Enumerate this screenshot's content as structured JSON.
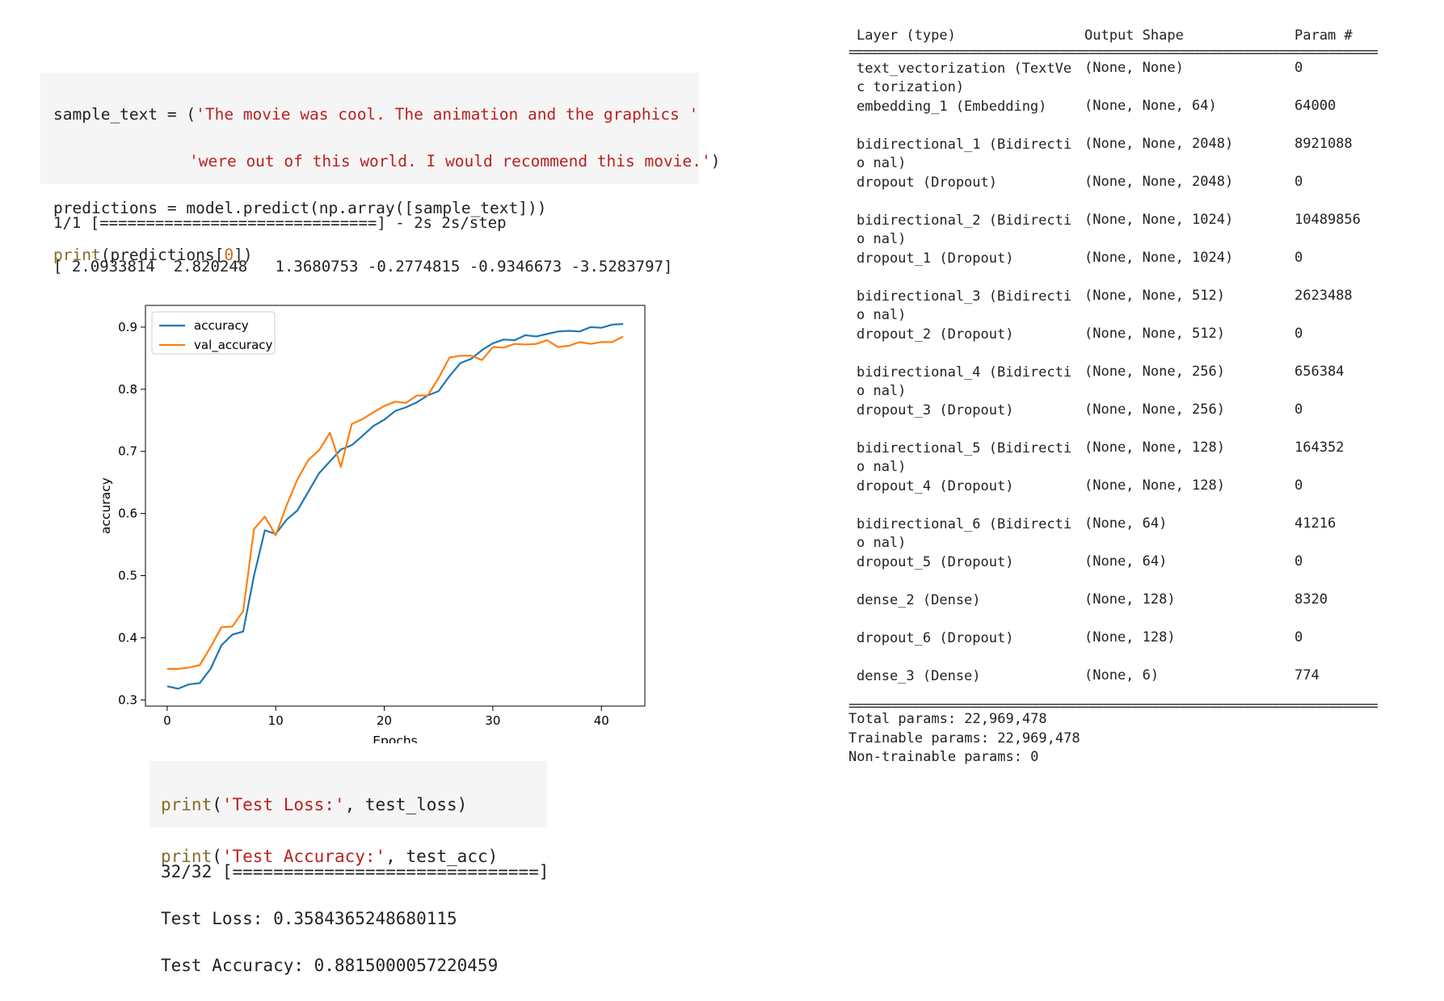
{
  "cell1": {
    "line1_a": "sample_text = (",
    "line1_str": "'The movie was cool. The animation and the graphics '",
    "line2_str": "'were out of this world. I would recommend this movie.'",
    "line2_end": ")",
    "line3": "predictions = model.predict(np.array([sample_text]))",
    "line4_kw": "print",
    "line4_a": "(predictions[",
    "line4_num": "0",
    "line4_b": "])"
  },
  "output1": {
    "progress": "1/1 [==============================] - 2s 2s/step",
    "values": "[ 2.0933814  2.820248   1.3680753 -0.2774815 -0.9346673 -3.5283797]"
  },
  "chart_data": {
    "type": "line",
    "xlabel": "Epochs",
    "ylabel": "accuracy",
    "xlim": [
      -2,
      44
    ],
    "ylim": [
      0.29,
      0.935
    ],
    "xticks": [
      0,
      10,
      20,
      30,
      40
    ],
    "yticks": [
      0.3,
      0.4,
      0.5,
      0.6,
      0.7,
      0.8,
      0.9
    ],
    "legend": "upper-left",
    "grid": false,
    "x": [
      0,
      1,
      2,
      3,
      4,
      5,
      6,
      7,
      8,
      9,
      10,
      11,
      12,
      13,
      14,
      15,
      16,
      17,
      18,
      19,
      20,
      21,
      22,
      23,
      24,
      25,
      26,
      27,
      28,
      29,
      30,
      31,
      32,
      33,
      34,
      35,
      36,
      37,
      38,
      39,
      40,
      41,
      42
    ],
    "series": [
      {
        "name": "accuracy",
        "color": "#1f77b4",
        "values": [
          0.322,
          0.318,
          0.325,
          0.327,
          0.35,
          0.388,
          0.405,
          0.41,
          0.5,
          0.573,
          0.567,
          0.59,
          0.605,
          0.635,
          0.665,
          0.684,
          0.703,
          0.71,
          0.725,
          0.741,
          0.751,
          0.765,
          0.771,
          0.779,
          0.79,
          0.797,
          0.821,
          0.842,
          0.849,
          0.863,
          0.874,
          0.88,
          0.879,
          0.887,
          0.885,
          0.889,
          0.893,
          0.894,
          0.893,
          0.9,
          0.899,
          0.904,
          0.905
        ]
      },
      {
        "name": "val_accuracy",
        "color": "#ff7f0e",
        "values": [
          0.35,
          0.35,
          0.352,
          0.356,
          0.385,
          0.417,
          0.418,
          0.443,
          0.575,
          0.595,
          0.565,
          0.613,
          0.655,
          0.686,
          0.702,
          0.73,
          0.675,
          0.744,
          0.752,
          0.763,
          0.773,
          0.78,
          0.778,
          0.79,
          0.79,
          0.818,
          0.851,
          0.854,
          0.854,
          0.847,
          0.868,
          0.867,
          0.873,
          0.872,
          0.873,
          0.879,
          0.868,
          0.87,
          0.876,
          0.873,
          0.876,
          0.876,
          0.885
        ]
      }
    ]
  },
  "cell2": {
    "line1_kw": "print",
    "line1_a": "(",
    "line1_str": "'Test Loss:'",
    "line1_b": ", test_loss)",
    "line2_kw": "print",
    "line2_a": "(",
    "line2_str": "'Test Accuracy:'",
    "line2_b": ", test_acc)"
  },
  "output2": {
    "progress": "32/32 [==============================]",
    "loss": "Test Loss: 0.3584365248680115",
    "acc": "Test Accuracy: 0.8815000057220459"
  },
  "summary": {
    "rule_dash": "_____________________________________________________________________________",
    "rule_eq": "=============================================================================",
    "headers": {
      "layer": "Layer (type)",
      "shape": "Output Shape",
      "params": "Param #"
    },
    "rows": [
      {
        "layer": "text_vectorization (TextVec torization)",
        "shape": "(None, None)",
        "params": "0"
      },
      {
        "layer": "embedding_1 (Embedding)",
        "shape": "(None, None, 64)",
        "params": "64000"
      },
      {
        "layer": "bidirectional_1 (Bidirectio nal)",
        "shape": "(None, None, 2048)",
        "params": "8921088"
      },
      {
        "layer": "dropout (Dropout)",
        "shape": "(None, None, 2048)",
        "params": "0"
      },
      {
        "layer": "bidirectional_2 (Bidirectio nal)",
        "shape": "(None, None, 1024)",
        "params": "10489856"
      },
      {
        "layer": "dropout_1 (Dropout)",
        "shape": "(None, None, 1024)",
        "params": "0"
      },
      {
        "layer": "bidirectional_3 (Bidirectio nal)",
        "shape": "(None, None, 512)",
        "params": "2623488"
      },
      {
        "layer": "dropout_2 (Dropout)",
        "shape": "(None, None, 512)",
        "params": "0"
      },
      {
        "layer": "bidirectional_4 (Bidirectio nal)",
        "shape": "(None, None, 256)",
        "params": "656384"
      },
      {
        "layer": "dropout_3 (Dropout)",
        "shape": "(None, None, 256)",
        "params": "0"
      },
      {
        "layer": "bidirectional_5 (Bidirectio nal)",
        "shape": "(None, None, 128)",
        "params": "164352"
      },
      {
        "layer": "dropout_4 (Dropout)",
        "shape": "(None, None, 128)",
        "params": "0"
      },
      {
        "layer": "bidirectional_6 (Bidirectio nal)",
        "shape": "(None, 64)",
        "params": "41216"
      },
      {
        "layer": "dropout_5 (Dropout)",
        "shape": "(None, 64)",
        "params": "0"
      },
      {
        "layer": "dense_2 (Dense)",
        "shape": "(None, 128)",
        "params": "8320"
      },
      {
        "layer": "dropout_6 (Dropout)",
        "shape": "(None, 128)",
        "params": "0"
      },
      {
        "layer": "dense_3 (Dense)",
        "shape": "(None, 6)",
        "params": "774"
      }
    ],
    "total": "Total params: 22,969,478",
    "trainable": "Trainable params: 22,969,478",
    "non_trainable": "Non-trainable params: 0"
  }
}
